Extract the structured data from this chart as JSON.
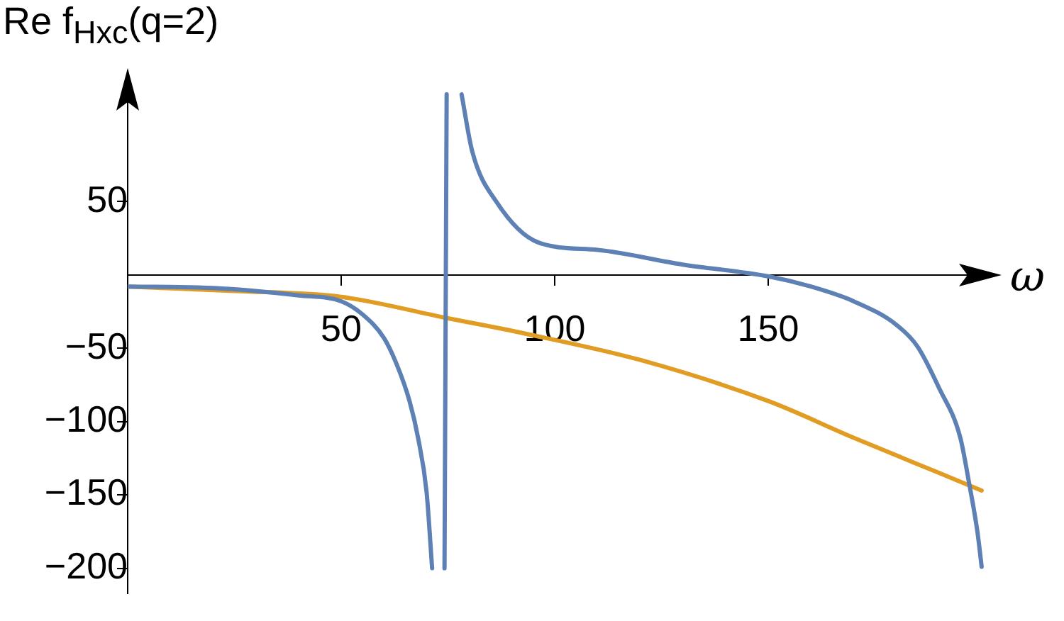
{
  "chart_data": {
    "type": "line",
    "xlabel": "ω",
    "ylabel": "Re f$_{Hxc}$(q=2)",
    "xlim": [
      0,
      204
    ],
    "ylim": [
      -217,
      139
    ],
    "xticks": [
      50,
      100,
      150
    ],
    "yticks": [
      {
        "value": -200,
        "label": "−200"
      },
      {
        "value": -150,
        "label": "−150"
      },
      {
        "value": -100,
        "label": "−100"
      },
      {
        "value": -50,
        "label": "−50"
      },
      50
    ],
    "grid": false,
    "legend": false,
    "marker": "none",
    "line_style": "solid",
    "series": [
      {
        "color": "#5e81b5",
        "x": [
          0,
          20,
          40,
          50,
          55,
          60,
          63,
          66,
          68,
          70,
          71.3,
          null,
          74.2,
          74.7,
          null,
          78.2,
          80.7,
          86.3,
          96.2,
          110,
          130,
          150,
          160,
          170,
          180,
          185,
          190,
          195,
          197,
          199,
          200
        ],
        "values": [
          -8,
          -9,
          -14,
          -18,
          -27,
          -43,
          -61,
          -86,
          -111,
          -148,
          -200,
          null,
          -200,
          123,
          null,
          123,
          84,
          50,
          22,
          17,
          7,
          -1,
          -8,
          -18,
          -34,
          -49,
          -77,
          -111,
          -141,
          -175,
          -199
        ]
      },
      {
        "color": "#e19c24",
        "x": [
          0,
          25,
          50,
          74,
          93,
          120,
          150,
          170,
          190,
          200
        ],
        "values": [
          -8,
          -11,
          -15,
          -29,
          -40,
          -58,
          -86,
          -111,
          -135,
          -147
        ]
      }
    ]
  }
}
